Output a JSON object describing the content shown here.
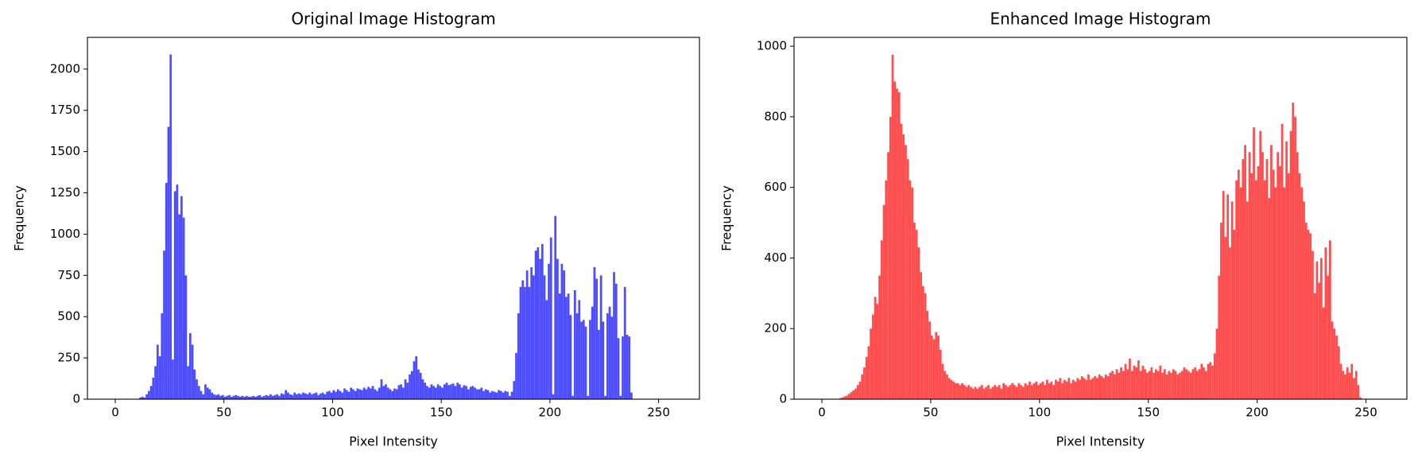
{
  "chart_data": [
    {
      "type": "histogram",
      "title": "Original Image Histogram",
      "xlabel": "Pixel Intensity",
      "ylabel": "Frequency",
      "color": "#4d4dff",
      "xlim": [
        -12.8,
        268.8
      ],
      "xticks": [
        0,
        50,
        100,
        150,
        200,
        250
      ],
      "ylim": [
        0,
        2192
      ],
      "yticks": [
        0,
        250,
        500,
        750,
        1000,
        1250,
        1500,
        1750,
        2000
      ],
      "grid": false,
      "bins": [
        0,
        1,
        2,
        3,
        4,
        5,
        6,
        7,
        8,
        9,
        10,
        11,
        12,
        13,
        14,
        15,
        16,
        17,
        18,
        19,
        20,
        21,
        22,
        23,
        24,
        25,
        26,
        27,
        28,
        29,
        30,
        31,
        32,
        33,
        34,
        35,
        36,
        37,
        38,
        39,
        40,
        41,
        42,
        43,
        44,
        45,
        46,
        47,
        48,
        49,
        50,
        51,
        52,
        53,
        54,
        55,
        56,
        57,
        58,
        59,
        60,
        61,
        62,
        63,
        64,
        65,
        66,
        67,
        68,
        69,
        70,
        71,
        72,
        73,
        74,
        75,
        76,
        77,
        78,
        79,
        80,
        81,
        82,
        83,
        84,
        85,
        86,
        87,
        88,
        89,
        90,
        91,
        92,
        93,
        94,
        95,
        96,
        97,
        98,
        99,
        100,
        101,
        102,
        103,
        104,
        105,
        106,
        107,
        108,
        109,
        110,
        111,
        112,
        113,
        114,
        115,
        116,
        117,
        118,
        119,
        120,
        121,
        122,
        123,
        124,
        125,
        126,
        127,
        128,
        129,
        130,
        131,
        132,
        133,
        134,
        135,
        136,
        137,
        138,
        139,
        140,
        141,
        142,
        143,
        144,
        145,
        146,
        147,
        148,
        149,
        150,
        151,
        152,
        153,
        154,
        155,
        156,
        157,
        158,
        159,
        160,
        161,
        162,
        163,
        164,
        165,
        166,
        167,
        168,
        169,
        170,
        171,
        172,
        173,
        174,
        175,
        176,
        177,
        178,
        179,
        180,
        181,
        182,
        183,
        184,
        185,
        186,
        187,
        188,
        189,
        190,
        191,
        192,
        193,
        194,
        195,
        196,
        197,
        198,
        199,
        200,
        201,
        202,
        203,
        204,
        205,
        206,
        207,
        208,
        209,
        210,
        211,
        212,
        213,
        214,
        215,
        216,
        217,
        218,
        219,
        220,
        221,
        222,
        223,
        224,
        225,
        226,
        227,
        228,
        229,
        230,
        231,
        232,
        233,
        234,
        235,
        236,
        237,
        238,
        239,
        240,
        241,
        242,
        243,
        244,
        245,
        246,
        247,
        248,
        249,
        250,
        251,
        252,
        253,
        254,
        255,
        256
      ],
      "values": [
        0,
        0,
        0,
        0,
        0,
        0,
        0,
        0,
        0,
        0,
        0,
        10,
        15,
        10,
        30,
        50,
        80,
        130,
        200,
        330,
        260,
        520,
        900,
        1310,
        1650,
        2088,
        240,
        1260,
        1300,
        1120,
        1230,
        1100,
        750,
        200,
        400,
        330,
        180,
        120,
        80,
        50,
        30,
        90,
        70,
        60,
        40,
        30,
        25,
        30,
        20,
        25,
        15,
        20,
        25,
        15,
        20,
        25,
        20,
        15,
        20,
        15,
        20,
        15,
        15,
        20,
        15,
        20,
        25,
        15,
        20,
        25,
        20,
        30,
        20,
        25,
        30,
        20,
        35,
        30,
        55,
        40,
        30,
        25,
        40,
        30,
        35,
        30,
        40,
        35,
        30,
        40,
        30,
        35,
        40,
        25,
        35,
        40,
        30,
        45,
        50,
        40,
        55,
        45,
        60,
        50,
        40,
        65,
        55,
        45,
        70,
        60,
        50,
        65,
        60,
        55,
        70,
        60,
        75,
        65,
        80,
        60,
        50,
        70,
        120,
        80,
        90,
        70,
        60,
        50,
        65,
        60,
        85,
        90,
        70,
        120,
        100,
        150,
        170,
        230,
        260,
        180,
        160,
        120,
        100,
        80,
        70,
        90,
        80,
        70,
        90,
        80,
        70,
        90,
        100,
        85,
        90,
        95,
        80,
        100,
        90,
        70,
        85,
        80,
        60,
        75,
        80,
        70,
        60,
        60,
        70,
        50,
        60,
        55,
        40,
        50,
        45,
        40,
        55,
        50,
        40,
        50,
        45,
        20,
        45,
        110,
        280,
        520,
        680,
        720,
        680,
        780,
        680,
        800,
        750,
        900,
        920,
        850,
        940,
        750,
        600,
        820,
        980,
        30,
        1110,
        850,
        640,
        820,
        780,
        620,
        640,
        510,
        20,
        660,
        520,
        600,
        470,
        480,
        440,
        20,
        480,
        560,
        800,
        730,
        420,
        750,
        470,
        20,
        520,
        560,
        500,
        770,
        700,
        370,
        20,
        380,
        680,
        390,
        380,
        40,
        0,
        0,
        0,
        0,
        0,
        0,
        0,
        0,
        0,
        0,
        0,
        0,
        0,
        0,
        0,
        0,
        0,
        0
      ]
    },
    {
      "type": "histogram",
      "title": "Enhanced Image Histogram",
      "xlabel": "Pixel Intensity",
      "ylabel": "Frequency",
      "color": "#ff4d4d",
      "xlim": [
        -12.8,
        268.8
      ],
      "xticks": [
        0,
        50,
        100,
        150,
        200,
        250
      ],
      "ylim": [
        0,
        1025
      ],
      "yticks": [
        0,
        200,
        400,
        600,
        800,
        1000
      ],
      "grid": false,
      "bins": [
        0,
        1,
        2,
        3,
        4,
        5,
        6,
        7,
        8,
        9,
        10,
        11,
        12,
        13,
        14,
        15,
        16,
        17,
        18,
        19,
        20,
        21,
        22,
        23,
        24,
        25,
        26,
        27,
        28,
        29,
        30,
        31,
        32,
        33,
        34,
        35,
        36,
        37,
        38,
        39,
        40,
        41,
        42,
        43,
        44,
        45,
        46,
        47,
        48,
        49,
        50,
        51,
        52,
        53,
        54,
        55,
        56,
        57,
        58,
        59,
        60,
        61,
        62,
        63,
        64,
        65,
        66,
        67,
        68,
        69,
        70,
        71,
        72,
        73,
        74,
        75,
        76,
        77,
        78,
        79,
        80,
        81,
        82,
        83,
        84,
        85,
        86,
        87,
        88,
        89,
        90,
        91,
        92,
        93,
        94,
        95,
        96,
        97,
        98,
        99,
        100,
        101,
        102,
        103,
        104,
        105,
        106,
        107,
        108,
        109,
        110,
        111,
        112,
        113,
        114,
        115,
        116,
        117,
        118,
        119,
        120,
        121,
        122,
        123,
        124,
        125,
        126,
        127,
        128,
        129,
        130,
        131,
        132,
        133,
        134,
        135,
        136,
        137,
        138,
        139,
        140,
        141,
        142,
        143,
        144,
        145,
        146,
        147,
        148,
        149,
        150,
        151,
        152,
        153,
        154,
        155,
        156,
        157,
        158,
        159,
        160,
        161,
        162,
        163,
        164,
        165,
        166,
        167,
        168,
        169,
        170,
        171,
        172,
        173,
        174,
        175,
        176,
        177,
        178,
        179,
        180,
        181,
        182,
        183,
        184,
        185,
        186,
        187,
        188,
        189,
        190,
        191,
        192,
        193,
        194,
        195,
        196,
        197,
        198,
        199,
        200,
        201,
        202,
        203,
        204,
        205,
        206,
        207,
        208,
        209,
        210,
        211,
        212,
        213,
        214,
        215,
        216,
        217,
        218,
        219,
        220,
        221,
        222,
        223,
        224,
        225,
        226,
        227,
        228,
        229,
        230,
        231,
        232,
        233,
        234,
        235,
        236,
        237,
        238,
        239,
        240,
        241,
        242,
        243,
        244,
        245,
        246,
        247,
        248,
        249,
        250,
        251,
        252,
        253,
        254,
        255,
        256
      ],
      "values": [
        0,
        0,
        0,
        0,
        0,
        0,
        0,
        0,
        3,
        5,
        8,
        10,
        15,
        20,
        25,
        30,
        40,
        50,
        70,
        90,
        120,
        150,
        200,
        240,
        290,
        270,
        350,
        450,
        550,
        620,
        700,
        800,
        976,
        900,
        880,
        870,
        780,
        750,
        720,
        680,
        620,
        600,
        500,
        480,
        430,
        360,
        320,
        300,
        250,
        220,
        180,
        170,
        190,
        180,
        140,
        100,
        80,
        70,
        60,
        55,
        50,
        45,
        45,
        40,
        45,
        40,
        35,
        40,
        35,
        30,
        35,
        30,
        35,
        40,
        30,
        35,
        40,
        30,
        35,
        40,
        35,
        40,
        30,
        45,
        40,
        35,
        40,
        45,
        40,
        35,
        45,
        40,
        35,
        45,
        40,
        50,
        40,
        45,
        50,
        40,
        45,
        50,
        40,
        55,
        45,
        50,
        40,
        55,
        50,
        60,
        45,
        55,
        50,
        60,
        45,
        55,
        50,
        60,
        55,
        65,
        60,
        55,
        70,
        55,
        60,
        65,
        60,
        70,
        65,
        60,
        70,
        65,
        75,
        80,
        70,
        85,
        75,
        90,
        80,
        100,
        85,
        115,
        80,
        95,
        90,
        110,
        80,
        95,
        85,
        75,
        80,
        90,
        75,
        85,
        80,
        95,
        75,
        85,
        70,
        80,
        75,
        85,
        80,
        70,
        75,
        80,
        90,
        85,
        80,
        75,
        85,
        90,
        80,
        85,
        100,
        90,
        80,
        100,
        105,
        95,
        130,
        200,
        350,
        500,
        590,
        460,
        580,
        430,
        560,
        480,
        620,
        650,
        600,
        680,
        720,
        560,
        700,
        640,
        770,
        620,
        660,
        760,
        700,
        620,
        680,
        570,
        720,
        650,
        600,
        700,
        660,
        780,
        600,
        730,
        640,
        760,
        840,
        800,
        700,
        640,
        600,
        560,
        500,
        480,
        470,
        420,
        300,
        390,
        330,
        400,
        260,
        430,
        350,
        450,
        220,
        200,
        180,
        150,
        100,
        80,
        70,
        90,
        75,
        100,
        60,
        80,
        40,
        5,
        0,
        0,
        0,
        0,
        0,
        0,
        0,
        0
      ]
    }
  ]
}
